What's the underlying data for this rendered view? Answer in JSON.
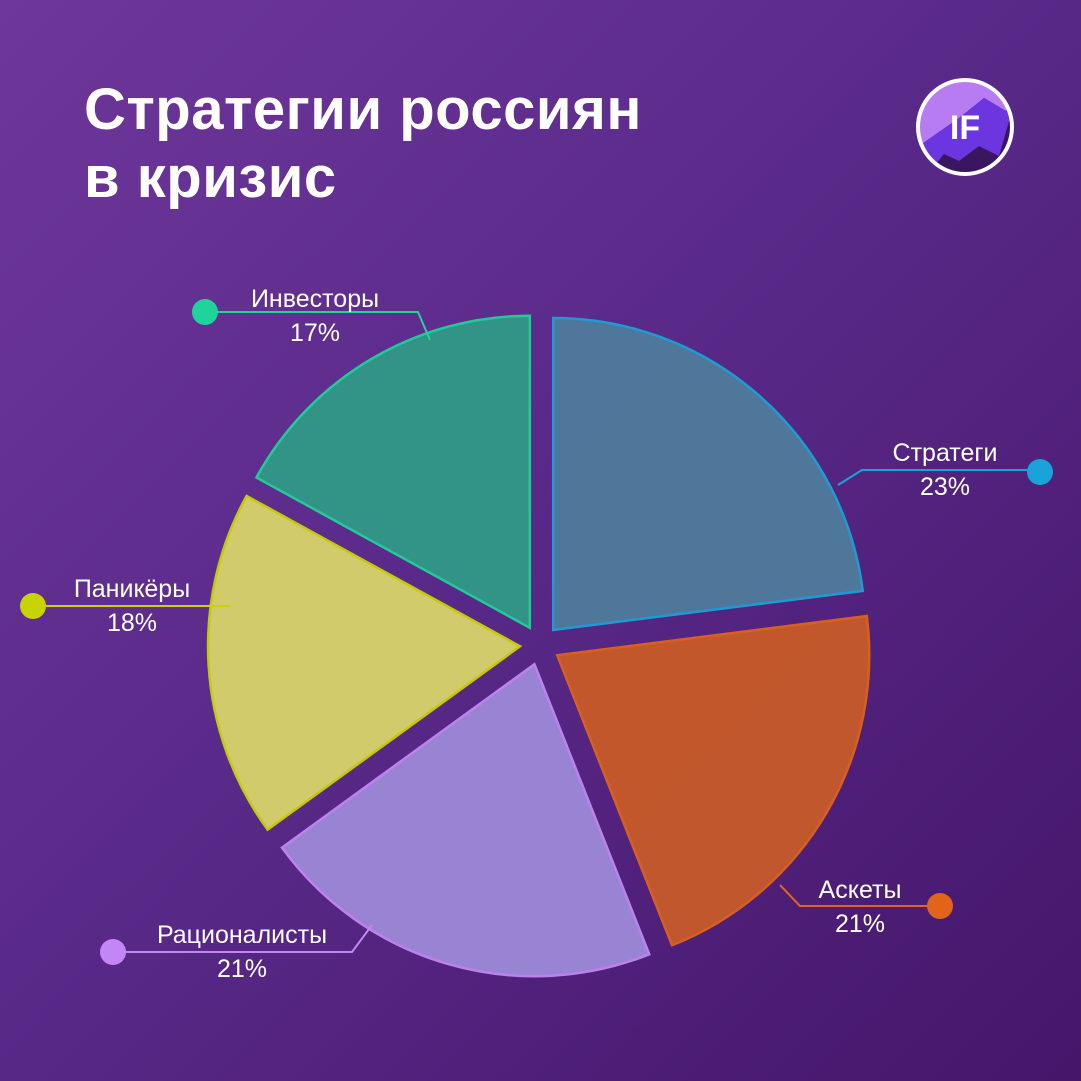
{
  "header": {
    "title_line1": "Стратегии россиян",
    "title_line2": "в кризис"
  },
  "logo": {
    "text": "IF"
  },
  "chart_data": {
    "type": "pie",
    "exploded": true,
    "start": "top",
    "direction": "clockwise",
    "categories": [
      "Стратеги",
      "Аскеты",
      "Рационалисты",
      "Паникёры",
      "Инвесторы"
    ],
    "values": [
      23,
      21,
      21,
      18,
      17
    ],
    "labels": [
      "23%",
      "21%",
      "21%",
      "18%",
      "17%"
    ],
    "colors": [
      "#1aa3d8",
      "#e0641a",
      "#c387f5",
      "#c8d400",
      "#1ed49a"
    ],
    "fills": [
      "#4f7c9c",
      "#c85a28",
      "#9d8ad8",
      "#d8d46a",
      "#2f9a86"
    ]
  }
}
